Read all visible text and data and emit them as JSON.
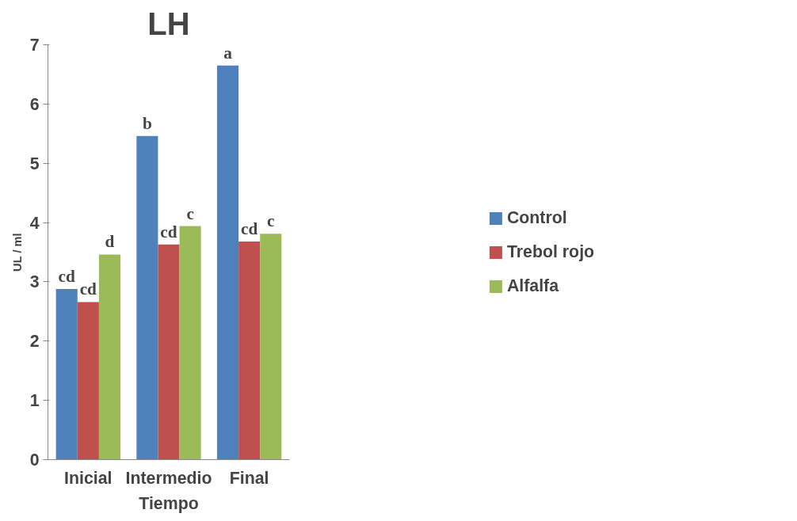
{
  "chart_data": {
    "type": "bar",
    "title": "LH",
    "xlabel": "Tiempo",
    "ylabel": "UL / ml",
    "categories": [
      "Inicial",
      "Intermedio",
      "Final"
    ],
    "series": [
      {
        "name": "Control",
        "color": "#4f81bd",
        "values": [
          2.88,
          5.46,
          6.65
        ],
        "value_labels": [
          "cd",
          "b",
          "a"
        ]
      },
      {
        "name": "Trebol rojo",
        "color": "#c0504d",
        "values": [
          2.66,
          3.63,
          3.68
        ],
        "value_labels": [
          "cd",
          "cd",
          "cd"
        ]
      },
      {
        "name": "Alfalfa",
        "color": "#9bbb59",
        "values": [
          3.46,
          3.94,
          3.81
        ],
        "value_labels": [
          "d",
          "c",
          "c"
        ]
      }
    ],
    "ylim": [
      0,
      7
    ],
    "yticks": [
      0,
      1,
      2,
      3,
      4,
      5,
      6,
      7
    ],
    "grid": false,
    "legend": "right"
  }
}
